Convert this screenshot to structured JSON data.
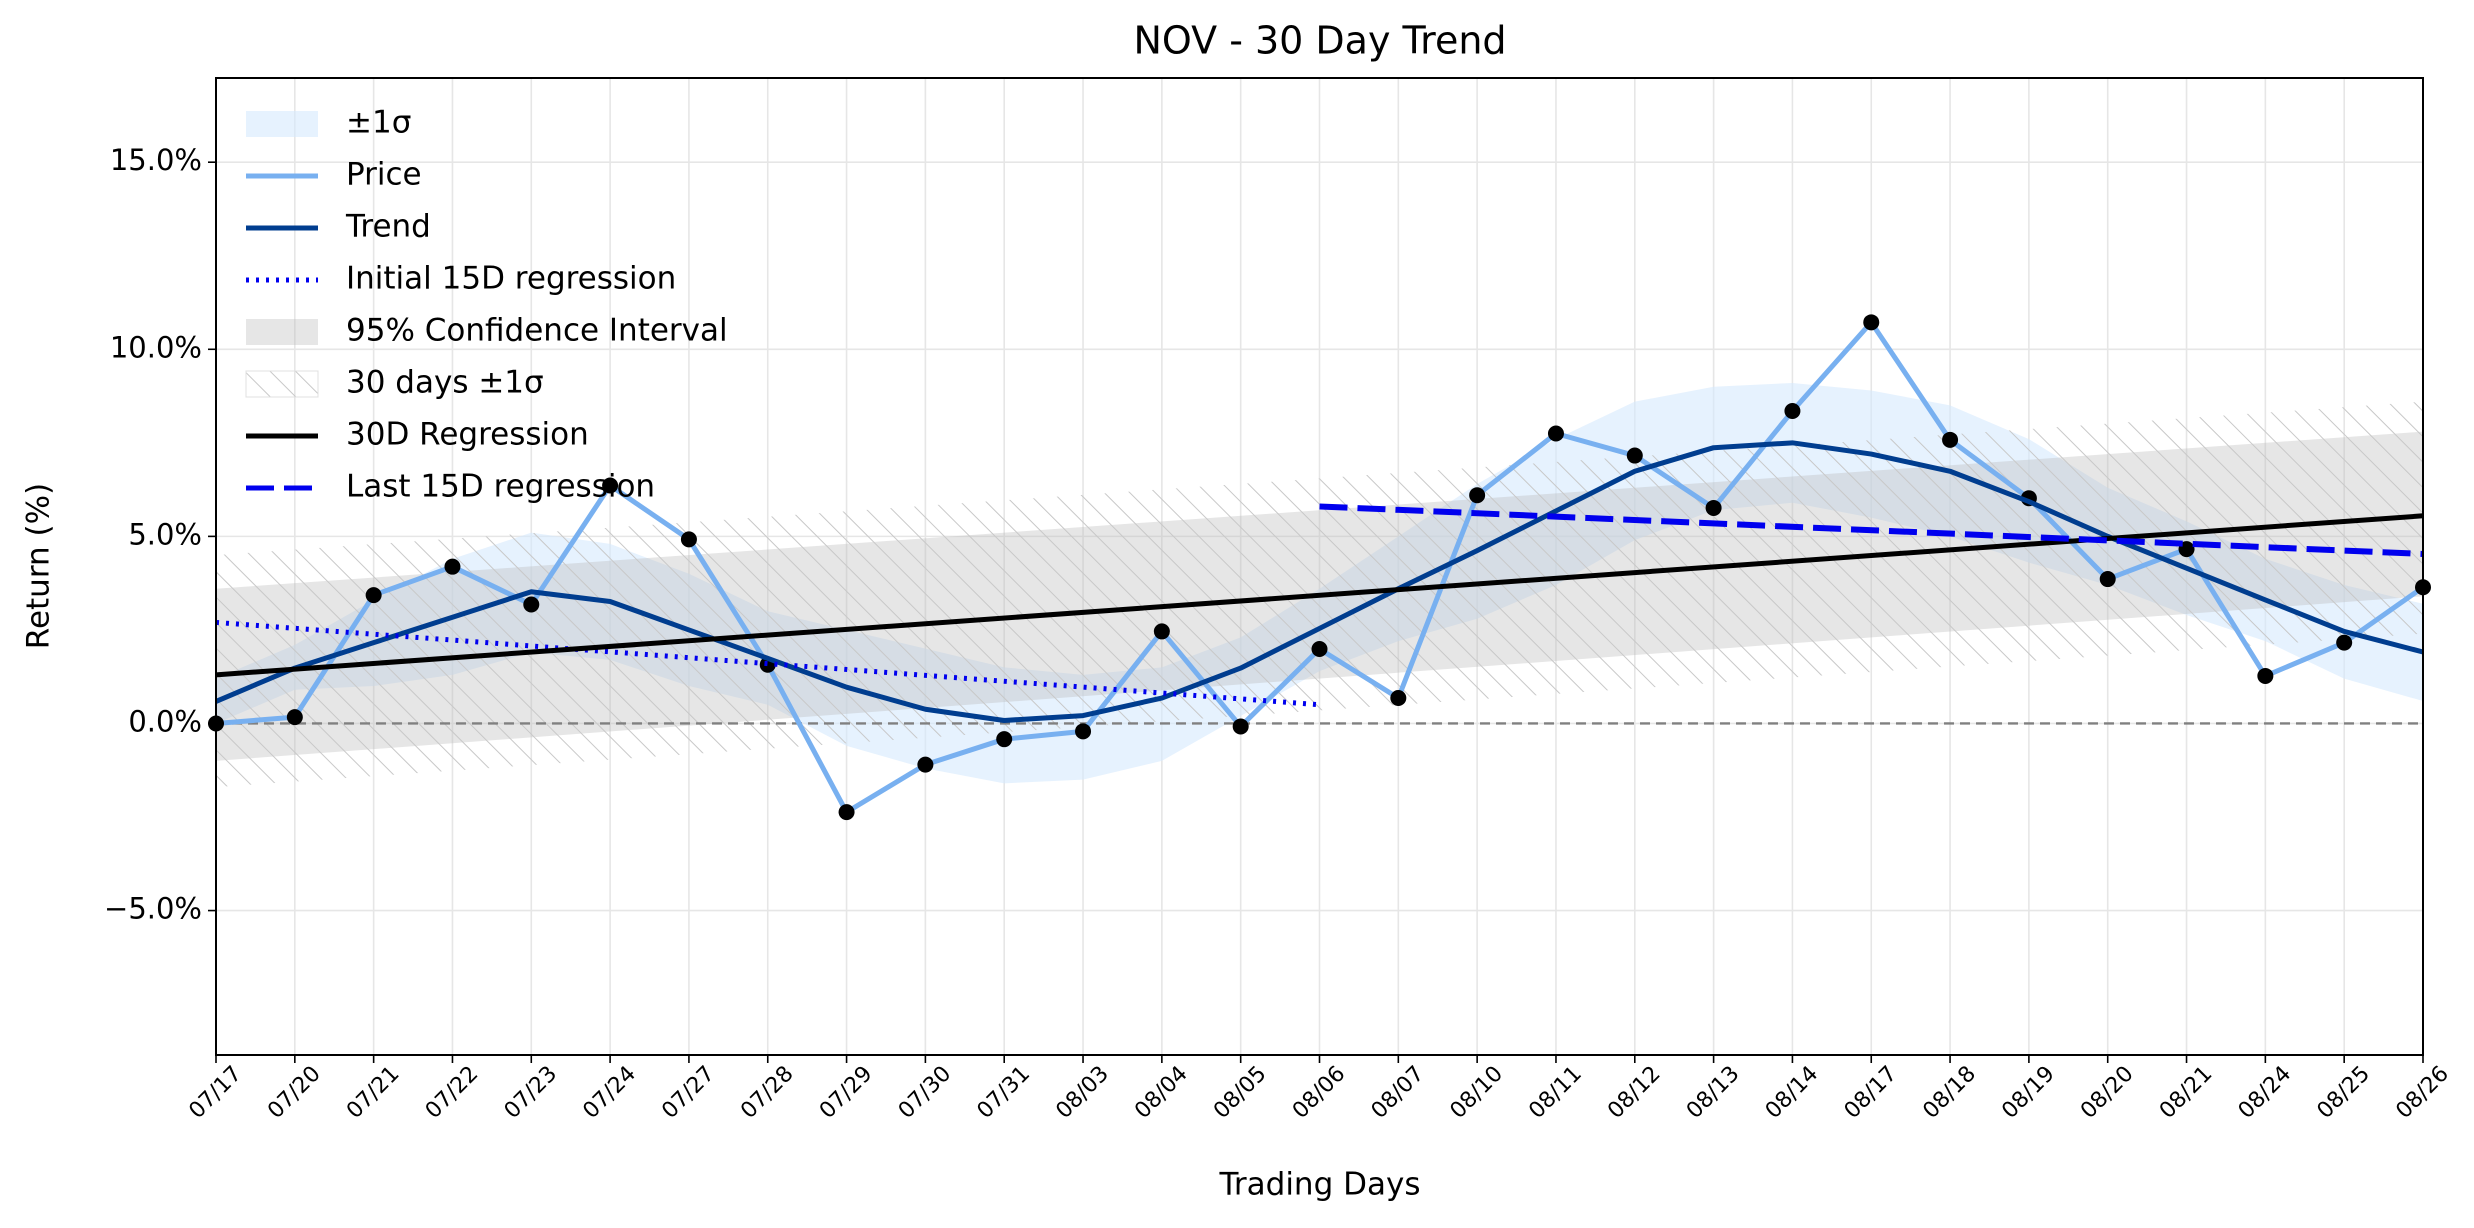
{
  "chart_data": {
    "type": "line",
    "title": "NOV - 30 Day Trend",
    "xlabel": "Trading Days",
    "ylabel": "Return (%)",
    "categories": [
      "07/17",
      "07/20",
      "07/21",
      "07/22",
      "07/23",
      "07/24",
      "07/27",
      "07/28",
      "07/29",
      "07/30",
      "07/31",
      "08/03",
      "08/04",
      "08/05",
      "08/06",
      "08/07",
      "08/10",
      "08/11",
      "08/12",
      "08/13",
      "08/14",
      "08/17",
      "08/18",
      "08/19",
      "08/20",
      "08/21",
      "08/24",
      "08/25",
      "08/26"
    ],
    "ylim": [
      -8.86,
      17.25
    ],
    "yticks": [
      {
        "value": -5,
        "label": "−5.0%"
      },
      {
        "value": 0,
        "label": "0.0%"
      },
      {
        "value": 5,
        "label": "5.0%"
      },
      {
        "value": 10,
        "label": "10.0%"
      },
      {
        "value": 15,
        "label": "15.0%"
      }
    ],
    "grid": true,
    "hline": 0,
    "legend": "upper left",
    "series": [
      {
        "name": "±1σ",
        "kind": "band",
        "color": "#d6eafd",
        "upper": [
          1.2,
          2.1,
          3.3,
          4.4,
          5.1,
          4.8,
          4.0,
          3.0,
          2.5,
          2.0,
          1.5,
          1.3,
          1.5,
          2.3,
          3.6,
          5.0,
          6.4,
          7.6,
          8.6,
          9.0,
          9.1,
          8.9,
          8.5,
          7.6,
          6.3,
          5.4,
          4.4,
          3.7,
          3.2
        ],
        "lower": [
          0.0,
          0.9,
          1.0,
          1.3,
          1.9,
          1.7,
          1.0,
          0.5,
          -0.6,
          -1.2,
          -1.6,
          -1.5,
          -1.0,
          0.2,
          1.4,
          2.2,
          2.8,
          3.7,
          4.9,
          5.7,
          5.9,
          5.5,
          5.0,
          4.3,
          3.7,
          2.9,
          2.2,
          1.2,
          0.6
        ]
      },
      {
        "name": "Price",
        "kind": "line",
        "color": "#78b0f0",
        "marker_color": "#000000",
        "values": [
          0.0,
          0.17,
          3.43,
          4.19,
          3.18,
          6.36,
          4.92,
          1.57,
          -2.37,
          -1.1,
          -0.42,
          -0.21,
          2.46,
          -0.08,
          1.99,
          0.68,
          6.1,
          7.75,
          7.16,
          5.76,
          8.35,
          10.72,
          7.58,
          6.02,
          3.86,
          4.66,
          1.27,
          2.16,
          3.64
        ]
      },
      {
        "name": "Trend",
        "kind": "line",
        "color": "#003d8f",
        "values": [
          0.59,
          1.48,
          2.16,
          2.84,
          3.52,
          3.26,
          2.5,
          1.74,
          0.97,
          0.38,
          0.08,
          0.21,
          0.68,
          1.48,
          2.54,
          3.6,
          4.62,
          5.68,
          6.74,
          7.37,
          7.5,
          7.2,
          6.74,
          5.93,
          5.0,
          4.15,
          3.3,
          2.46,
          1.91
        ]
      },
      {
        "name": "Initial 15D regression",
        "kind": "line",
        "style": "dotted",
        "color": "#0000ee",
        "x": [
          "07/17",
          "08/06"
        ],
        "values": [
          2.7,
          0.5
        ]
      },
      {
        "name": "95% Confidence Interval",
        "kind": "band",
        "color": "#b8b8b8",
        "x": [
          "07/17",
          "08/26"
        ],
        "upper": [
          3.6,
          7.8
        ],
        "lower": [
          -1.0,
          3.4
        ]
      },
      {
        "name": "30 days ±1σ",
        "kind": "band",
        "style": "hatched",
        "color": "#cccccc",
        "x": [
          "07/17",
          "08/26"
        ],
        "upper": [
          4.5,
          8.6
        ],
        "lower": [
          -1.7,
          2.4
        ]
      },
      {
        "name": "30D Regression",
        "kind": "line",
        "color": "#000000",
        "x": [
          "07/17",
          "08/26"
        ],
        "values": [
          1.3,
          5.55
        ]
      },
      {
        "name": "Last 15D regression",
        "kind": "line",
        "style": "dashed",
        "color": "#0000ee",
        "x": [
          "08/06",
          "08/26"
        ],
        "values": [
          5.8,
          4.53
        ]
      }
    ]
  }
}
